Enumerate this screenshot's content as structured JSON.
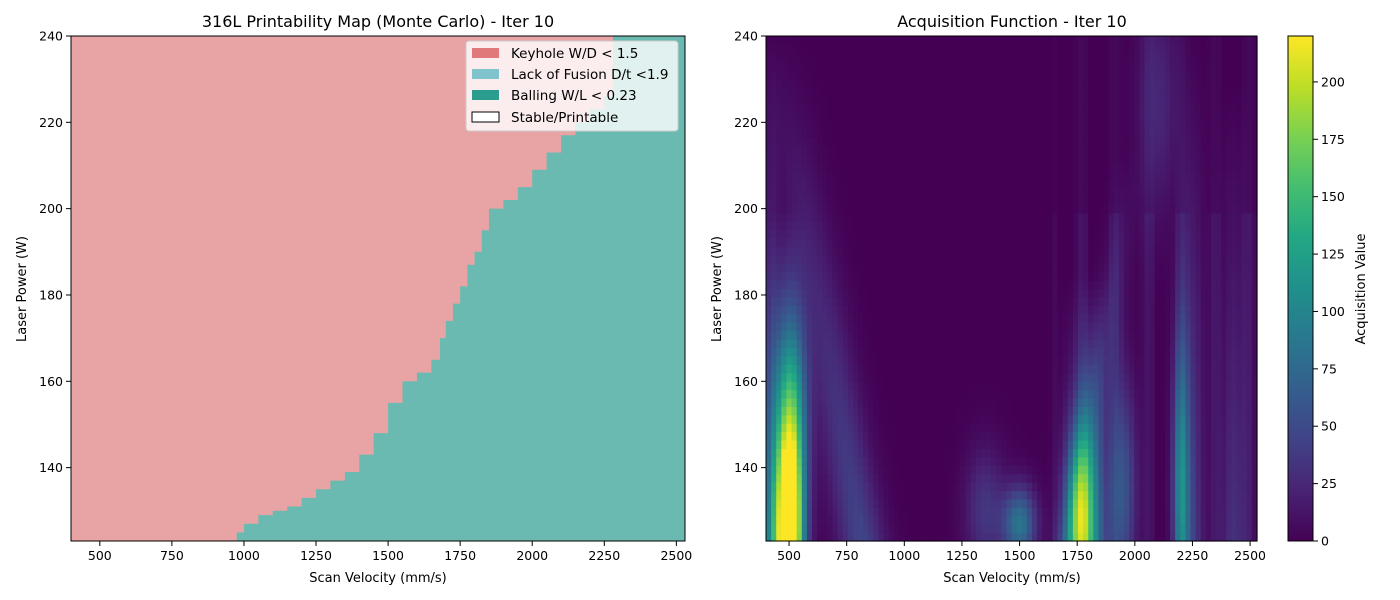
{
  "chart_data": [
    {
      "type": "heatmap",
      "title": "316L Printability Map (Monte Carlo) - Iter 10",
      "xlabel": "Scan Velocity (mm/s)",
      "ylabel": "Laser Power (W)",
      "xlim": [
        400,
        2530
      ],
      "ylim": [
        123,
        240
      ],
      "x_ticks": [
        "500",
        "750",
        "1000",
        "1250",
        "1500",
        "1750",
        "2000",
        "2250",
        "2500"
      ],
      "y_ticks": [
        "140",
        "160",
        "180",
        "200",
        "220",
        "240"
      ],
      "grid": false,
      "legend_position": "top-right",
      "legend": [
        {
          "label": "Keyhole W/D < 1.5",
          "color": "#e07a7a"
        },
        {
          "label": "Lack of Fusion D/t <1.9",
          "color": "#7fc4cc"
        },
        {
          "label": "Balling W/L < 0.23",
          "color": "#2a9d8f"
        },
        {
          "label": "Stable/Printable",
          "color": "#ffffff"
        }
      ],
      "regions": {
        "keyhole_color": "#e8a4a4",
        "lack_of_fusion_color": "#6bbab1",
        "boundary_velocity": [
          950,
          975,
          1000,
          1050,
          1100,
          1150,
          1200,
          1250,
          1300,
          1350,
          1400,
          1450,
          1500,
          1550,
          1600,
          1650,
          1680,
          1700,
          1725,
          1750,
          1775,
          1800,
          1825,
          1850,
          1900,
          1950,
          2000,
          2050,
          2100,
          2150,
          2200,
          2250,
          2280,
          2300,
          2530
        ],
        "boundary_power": [
          123,
          125,
          127,
          129,
          130,
          131,
          133,
          135,
          137,
          139,
          143,
          148,
          155,
          160,
          162,
          165,
          170,
          174,
          178,
          182,
          187,
          190,
          195,
          200,
          202,
          205,
          209,
          213,
          217,
          220,
          223,
          226,
          240,
          240,
          240
        ]
      }
    },
    {
      "type": "heatmap",
      "title": "Acquisition Function - Iter 10",
      "xlabel": "Scan Velocity (mm/s)",
      "ylabel": "Laser Power (W)",
      "xlim": [
        400,
        2530
      ],
      "ylim": [
        123,
        240
      ],
      "x_ticks": [
        "500",
        "750",
        "1000",
        "1250",
        "1500",
        "1750",
        "2000",
        "2250",
        "2500"
      ],
      "y_ticks": [
        "140",
        "160",
        "180",
        "200",
        "220",
        "240"
      ],
      "grid": false,
      "colormap": "viridis",
      "colorbar": {
        "label": "Acquisition Value",
        "min": 0,
        "max": 220,
        "ticks": [
          "0",
          "25",
          "50",
          "75",
          "100",
          "125",
          "150",
          "175",
          "200"
        ]
      }
    }
  ]
}
